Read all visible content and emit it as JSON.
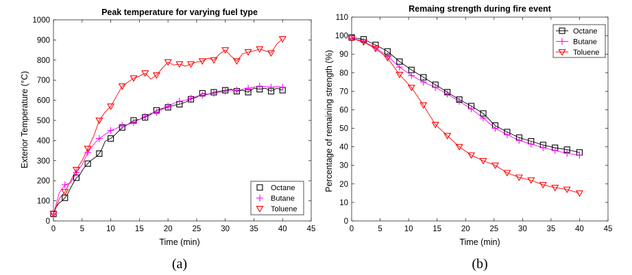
{
  "chart_data": [
    {
      "type": "line",
      "panel_label": "(a)",
      "title": "Peak temperature for varying fuel type",
      "xlabel": "Time (min)",
      "ylabel": "Exterior Temperature (°C)",
      "xlim": [
        0,
        45
      ],
      "ylim": [
        0,
        1000
      ],
      "xticks": [
        0,
        5,
        10,
        15,
        20,
        25,
        30,
        35,
        40,
        45
      ],
      "yticks": [
        0,
        100,
        200,
        300,
        400,
        500,
        600,
        700,
        800,
        900,
        1000
      ],
      "grid": false,
      "legend_position": "bottom-right",
      "series": [
        {
          "name": "Octane",
          "color": "#000000",
          "marker": "square",
          "x": [
            0,
            0.5,
            1,
            1.5,
            2,
            2.5,
            3,
            3.5,
            4,
            4.5,
            5,
            5.5,
            6,
            6.5,
            7,
            7.5,
            8,
            8.5,
            9,
            9.5,
            10,
            11,
            12,
            13,
            14,
            15,
            16,
            17,
            18,
            19,
            20,
            21,
            22,
            23,
            24,
            25,
            26,
            27,
            28,
            29,
            30,
            31,
            32,
            33,
            34,
            35,
            36,
            37,
            38,
            39,
            40
          ],
          "y": [
            35,
            70,
            90,
            100,
            115,
            135,
            165,
            190,
            215,
            225,
            250,
            270,
            285,
            300,
            310,
            320,
            335,
            360,
            395,
            405,
            410,
            435,
            465,
            480,
            500,
            505,
            515,
            530,
            550,
            560,
            565,
            575,
            580,
            590,
            605,
            615,
            635,
            630,
            640,
            645,
            650,
            655,
            645,
            650,
            640,
            660,
            655,
            660,
            645,
            660,
            650
          ],
          "marker_x": [
            0,
            2,
            4,
            6,
            8,
            10,
            12,
            14,
            16,
            18,
            20,
            22,
            24,
            26,
            28,
            30,
            32,
            34,
            36,
            38,
            40
          ],
          "marker_y": [
            35,
            115,
            215,
            285,
            335,
            410,
            465,
            500,
            515,
            550,
            565,
            580,
            605,
            635,
            640,
            650,
            645,
            640,
            655,
            645,
            650
          ]
        },
        {
          "name": "Butane",
          "color": "#ff00ff",
          "marker": "plus",
          "x": [
            0,
            1,
            2,
            3,
            4,
            5,
            6,
            7,
            8,
            9,
            10,
            11,
            12,
            13,
            14,
            15,
            16,
            17,
            18,
            19,
            20,
            21,
            22,
            23,
            24,
            25,
            26,
            27,
            28,
            29,
            30,
            31,
            32,
            33,
            34,
            35,
            36,
            37,
            38,
            39,
            40
          ],
          "y": [
            35,
            140,
            180,
            190,
            240,
            280,
            340,
            380,
            410,
            430,
            450,
            460,
            475,
            480,
            490,
            505,
            520,
            535,
            540,
            555,
            570,
            585,
            595,
            600,
            610,
            620,
            625,
            630,
            635,
            640,
            645,
            650,
            650,
            655,
            660,
            665,
            670,
            668,
            665,
            668,
            665
          ],
          "marker_x": [
            0,
            2,
            4,
            6,
            8,
            10,
            12,
            14,
            16,
            18,
            20,
            22,
            24,
            26,
            28,
            30,
            32,
            34,
            36,
            38,
            40
          ],
          "marker_y": [
            35,
            180,
            240,
            340,
            410,
            450,
            475,
            490,
            520,
            540,
            570,
            595,
            610,
            625,
            635,
            645,
            650,
            660,
            670,
            665,
            665
          ]
        },
        {
          "name": "Toluene",
          "color": "#ff0000",
          "marker": "triangle-down",
          "x": [
            0,
            1,
            2,
            3,
            4,
            5,
            6,
            7,
            8,
            9,
            10,
            11,
            12,
            13,
            14,
            15,
            16,
            17,
            18,
            19,
            20,
            21,
            22,
            23,
            24,
            25,
            26,
            27,
            28,
            29,
            30,
            31,
            32,
            33,
            34,
            35,
            36,
            37,
            38,
            39,
            40
          ],
          "y": [
            35,
            110,
            145,
            200,
            255,
            300,
            360,
            420,
            500,
            540,
            570,
            620,
            670,
            690,
            710,
            720,
            735,
            705,
            725,
            760,
            790,
            775,
            780,
            770,
            780,
            790,
            795,
            810,
            800,
            830,
            850,
            820,
            795,
            830,
            840,
            845,
            855,
            845,
            835,
            880,
            905
          ],
          "marker_x": [
            0,
            2,
            4,
            6,
            8,
            10,
            12,
            14,
            16,
            18,
            20,
            22,
            24,
            26,
            28,
            30,
            32,
            34,
            36,
            38,
            40
          ],
          "marker_y": [
            35,
            145,
            255,
            360,
            500,
            570,
            670,
            710,
            735,
            725,
            790,
            780,
            780,
            795,
            800,
            850,
            795,
            840,
            855,
            835,
            905
          ]
        }
      ]
    },
    {
      "type": "line",
      "panel_label": "(b)",
      "title": "Remaing strength during fire event",
      "xlabel": "Time (min)",
      "ylabel": "Percentage of remaining strength (%)",
      "xlim": [
        0,
        45
      ],
      "ylim": [
        0,
        110
      ],
      "xticks": [
        0,
        5,
        10,
        15,
        20,
        25,
        30,
        35,
        40,
        45
      ],
      "yticks": [
        0,
        10,
        20,
        30,
        40,
        50,
        60,
        70,
        80,
        90,
        100,
        110
      ],
      "grid": false,
      "legend_position": "top-right",
      "series": [
        {
          "name": "Octane",
          "color": "#000000",
          "marker": "square",
          "x": [
            0,
            2.1,
            4.2,
            6.3,
            8.4,
            10.5,
            12.6,
            14.7,
            16.8,
            18.9,
            21,
            23.1,
            25.2,
            27.3,
            29.4,
            31.5,
            33.6,
            35.7,
            37.8,
            40
          ],
          "y": [
            99,
            98,
            95,
            91.5,
            86,
            81.5,
            77.5,
            73.5,
            69.5,
            65.5,
            62,
            58,
            51.5,
            48,
            45,
            43,
            41,
            39.5,
            38.5,
            37
          ]
        },
        {
          "name": "Butane",
          "color": "#ff00ff",
          "marker": "plus",
          "x": [
            0,
            2.1,
            4.2,
            6.3,
            8.4,
            10.5,
            12.6,
            14.7,
            16.8,
            18.9,
            21,
            23.1,
            25.2,
            27.3,
            29.4,
            31.5,
            33.6,
            35.7,
            37.8,
            40
          ],
          "y": [
            98.5,
            97,
            93.5,
            89,
            83,
            78.5,
            75,
            72,
            68.5,
            64.5,
            60.5,
            55.5,
            50,
            46.5,
            43.5,
            41.5,
            39.5,
            38,
            36.5,
            35.5
          ]
        },
        {
          "name": "Toluene",
          "color": "#ff0000",
          "marker": "triangle-down",
          "x": [
            0,
            2.1,
            4.2,
            6.3,
            8.4,
            10.5,
            12.6,
            14.7,
            16.8,
            18.9,
            21,
            23.1,
            25.2,
            27.3,
            29.4,
            31.5,
            33.6,
            35.7,
            37.8,
            40
          ],
          "y": [
            98.5,
            96.5,
            93,
            88,
            79,
            72,
            62.5,
            52,
            46,
            40,
            35.5,
            32.5,
            30,
            26,
            23.5,
            22,
            19.5,
            18,
            17,
            15
          ]
        }
      ]
    }
  ]
}
